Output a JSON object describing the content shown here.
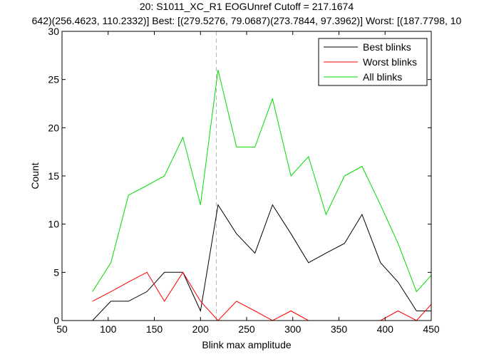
{
  "chart_data": {
    "type": "line",
    "title_line1": "20: S1011_XC_R1 EOGUnref Cutoff = 217.1674",
    "title_line2": "642)(256.4623, 110.2332)] Best: [(279.5276, 79.0687)(273.7844, 97.3962)] Worst: [(187.7798, 10",
    "xlabel": "Blink max amplitude",
    "ylabel": "Count",
    "xlim": [
      50,
      450
    ],
    "ylim": [
      0,
      30
    ],
    "xticks": [
      50,
      100,
      150,
      200,
      250,
      300,
      350,
      400,
      450
    ],
    "yticks": [
      0,
      5,
      10,
      15,
      20,
      25,
      30
    ],
    "cutoff": 217.1674,
    "legend_position": "top-right",
    "x": [
      83,
      103,
      122,
      142,
      161,
      181,
      200,
      219,
      239,
      259,
      278,
      298,
      317,
      336,
      356,
      375,
      395,
      414,
      434,
      453
    ],
    "series": [
      {
        "name": "Best blinks",
        "color": "#000000",
        "values": [
          0,
          2,
          2,
          3,
          5,
          5,
          1,
          12,
          9,
          7,
          12,
          9,
          6,
          7,
          8,
          11,
          6,
          4,
          1,
          1
        ]
      },
      {
        "name": "Worst blinks",
        "color": "#ff0000",
        "values": [
          2,
          3,
          4,
          5,
          2,
          5,
          2,
          0,
          2,
          1,
          0,
          1,
          0,
          0,
          0,
          0,
          0,
          1,
          0,
          2
        ]
      },
      {
        "name": "All blinks",
        "color": "#00dd00",
        "values": [
          3,
          6,
          13,
          14,
          15,
          19,
          12,
          26,
          18,
          18,
          23,
          15,
          17,
          11,
          15,
          16,
          12,
          8,
          3,
          5
        ]
      }
    ]
  }
}
